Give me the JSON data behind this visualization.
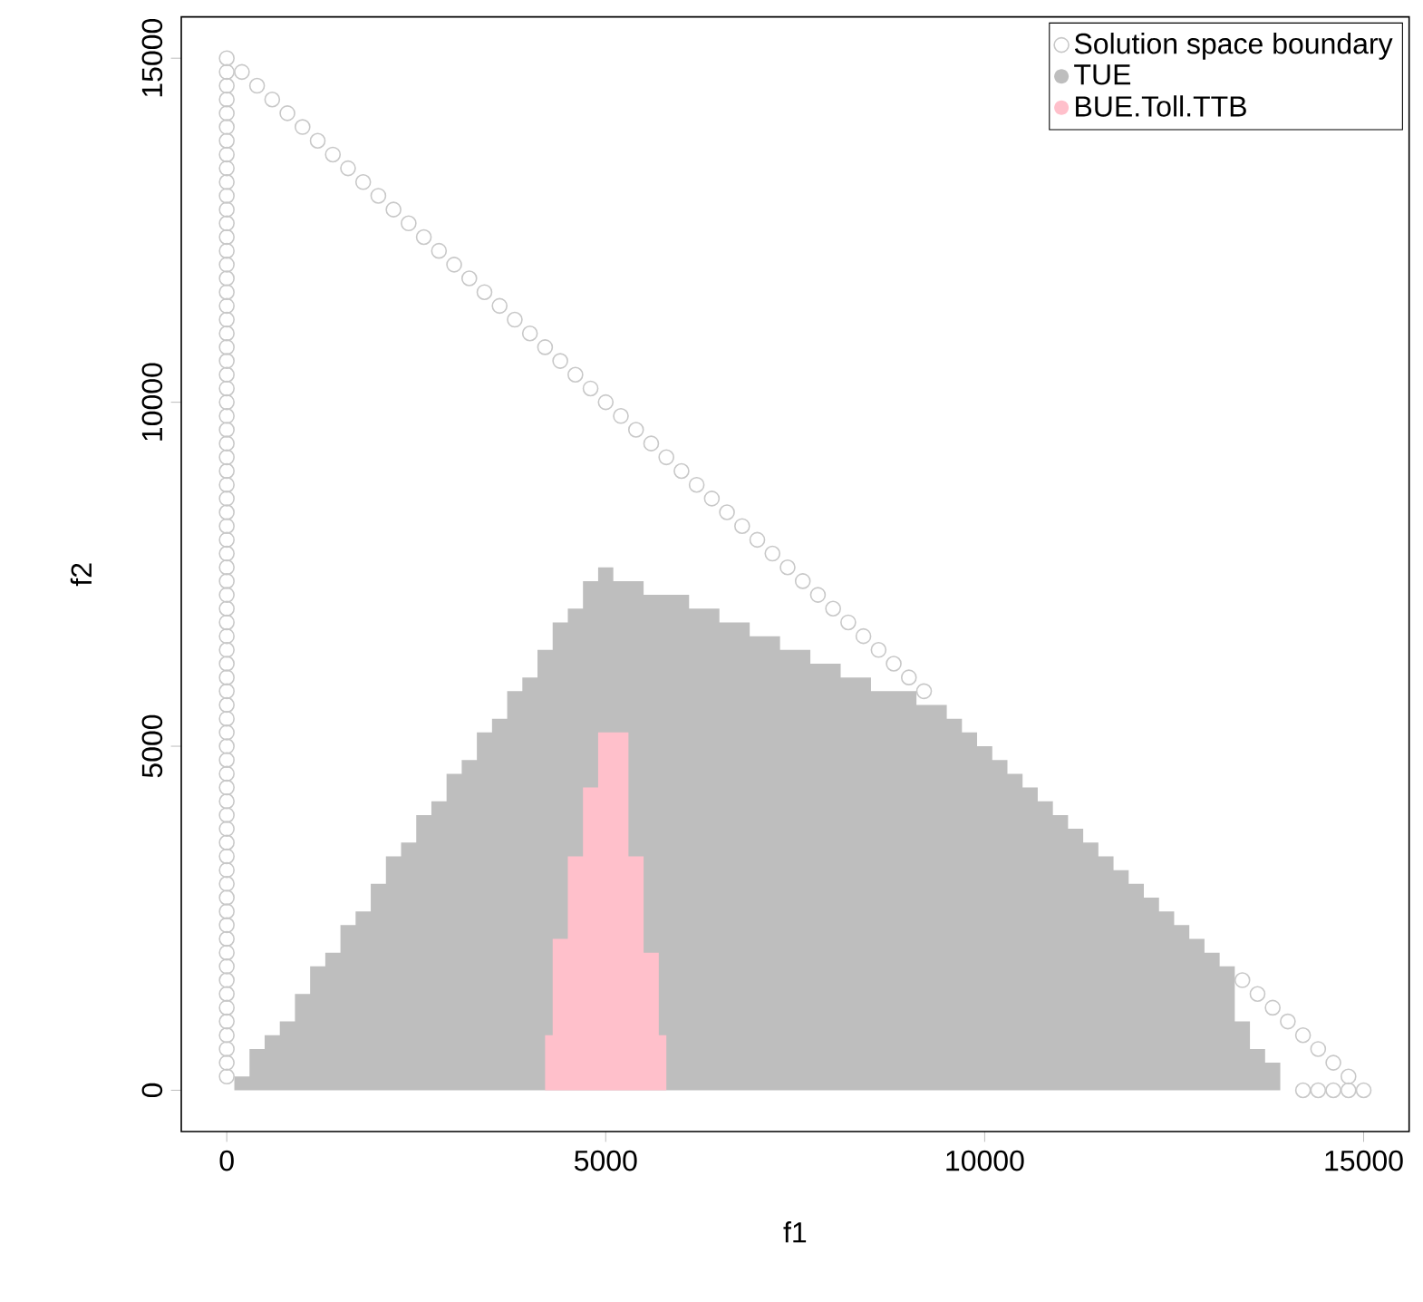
{
  "chart_data": {
    "type": "scatter",
    "xlabel": "f1",
    "ylabel": "f2",
    "xlim": [
      -600,
      15600
    ],
    "ylim": [
      -600,
      15600
    ],
    "xticks": [
      0,
      5000,
      10000,
      15000
    ],
    "yticks": [
      0,
      5000,
      10000,
      15000
    ],
    "legend": "top right",
    "series": [
      {
        "name": "Solution space boundary",
        "marker": "circle",
        "color": "#c8c8c8",
        "x": [
          0,
          0,
          0,
          0,
          0,
          0,
          0,
          0,
          0,
          0,
          0,
          0,
          0,
          0,
          0,
          0,
          0,
          0,
          0,
          0,
          0,
          0,
          0,
          0,
          0,
          0,
          0,
          0,
          0,
          0,
          0,
          0,
          0,
          0,
          0,
          0,
          0,
          0,
          0,
          0,
          0,
          0,
          0,
          0,
          0,
          0,
          0,
          0,
          0,
          0,
          0,
          0,
          0,
          0,
          0,
          0,
          0,
          0,
          0,
          0,
          0,
          0,
          0,
          0,
          0,
          0,
          0,
          0,
          0,
          0,
          0,
          0,
          0,
          0,
          0,
          200,
          400,
          600,
          800,
          1000,
          1200,
          1400,
          1600,
          1800,
          2000,
          2200,
          2400,
          2600,
          2800,
          3000,
          3200,
          3400,
          3600,
          3800,
          4000,
          4200,
          4400,
          4600,
          4800,
          5000,
          5200,
          5400,
          5600,
          5800,
          6000,
          6200,
          6400,
          6600,
          6800,
          7000,
          7200,
          7400,
          7600,
          7800,
          8000,
          8200,
          8400,
          8600,
          8800,
          9000,
          9200,
          13400,
          13600,
          13800,
          14000,
          14200,
          14400,
          14600,
          14800,
          15000,
          14200,
          14400,
          14600,
          14800
        ],
        "values": [
          200,
          400,
          600,
          800,
          1000,
          1200,
          1400,
          1600,
          1800,
          2000,
          2200,
          2400,
          2600,
          2800,
          3000,
          3200,
          3400,
          3600,
          3800,
          4000,
          4200,
          4400,
          4600,
          4800,
          5000,
          5200,
          5400,
          5600,
          5800,
          6000,
          6200,
          6400,
          6600,
          6800,
          7000,
          7200,
          7400,
          7600,
          7800,
          8000,
          8200,
          8400,
          8600,
          8800,
          9000,
          9200,
          9400,
          9600,
          9800,
          10000,
          10200,
          10400,
          10600,
          10800,
          11000,
          11200,
          11400,
          11600,
          11800,
          12000,
          12200,
          12400,
          12600,
          12800,
          13000,
          13200,
          13400,
          13600,
          13800,
          14000,
          14200,
          14400,
          14600,
          14800,
          15000,
          14800,
          14600,
          14400,
          14200,
          14000,
          13800,
          13600,
          13400,
          13200,
          13000,
          12800,
          12600,
          12400,
          12200,
          12000,
          11800,
          11600,
          11400,
          11200,
          11000,
          10800,
          10600,
          10400,
          10200,
          10000,
          9800,
          9600,
          9400,
          9200,
          9000,
          8800,
          8600,
          8400,
          8200,
          8000,
          7800,
          7600,
          7400,
          7200,
          7000,
          6800,
          6600,
          6400,
          6200,
          6000,
          5800,
          1600,
          1400,
          1200,
          1000,
          800,
          600,
          400,
          200,
          0,
          0,
          0,
          0,
          0
        ]
      },
      {
        "name": "TUE",
        "type": "area",
        "color": "#bebebe",
        "x": [
          0,
          200,
          400,
          600,
          800,
          1000,
          1200,
          1400,
          1600,
          1800,
          2000,
          2200,
          2400,
          2600,
          2800,
          3000,
          3200,
          3400,
          3600,
          3800,
          4000,
          4200,
          4400,
          4600,
          4800,
          5000,
          5200,
          5400,
          5600,
          5800,
          6000,
          6200,
          6400,
          6600,
          6800,
          7000,
          7200,
          7400,
          7600,
          7800,
          8000,
          8200,
          8400,
          8600,
          8800,
          9000,
          9200,
          9400,
          9600,
          9800,
          10000,
          10200,
          10400,
          10600,
          10800,
          11000,
          11200,
          11400,
          11600,
          11800,
          12000,
          12200,
          12400,
          12600,
          12800,
          13000,
          13200,
          13400,
          13600,
          13800,
          14000
        ],
        "values": [
          0,
          200,
          600,
          800,
          1000,
          1400,
          1800,
          2000,
          2400,
          2600,
          3000,
          3400,
          3600,
          4000,
          4200,
          4600,
          4800,
          5200,
          5400,
          5800,
          6000,
          6400,
          6800,
          7000,
          7400,
          7600,
          7400,
          7400,
          7200,
          7200,
          7200,
          7000,
          7000,
          6800,
          6800,
          6600,
          6600,
          6400,
          6400,
          6200,
          6200,
          6000,
          6000,
          5800,
          5800,
          5800,
          5600,
          5600,
          5400,
          5200,
          5000,
          4800,
          4600,
          4400,
          4200,
          4000,
          3800,
          3600,
          3400,
          3200,
          3000,
          2800,
          2600,
          2400,
          2200,
          2000,
          1800,
          1000,
          600,
          400,
          0
        ]
      },
      {
        "name": "BUE.Toll.TTB",
        "type": "area",
        "color": "#ffc0cb",
        "x": [
          4200,
          4400,
          4600,
          4800,
          5000,
          5200,
          5400,
          5600,
          5800
        ],
        "values": [
          800,
          2200,
          3400,
          4400,
          5200,
          5200,
          3400,
          2000,
          800
        ]
      }
    ]
  }
}
